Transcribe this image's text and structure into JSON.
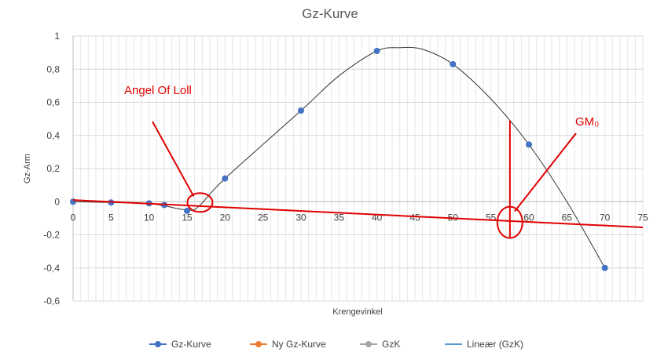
{
  "chart_data": {
    "type": "scatter",
    "title": "Gz-Kurve",
    "xlabel": "Krengevinkel",
    "ylabel": "Gz-Arm",
    "xlim": [
      0,
      75
    ],
    "ylim": [
      -0.6,
      1
    ],
    "x_ticks": [
      "0",
      "5",
      "10",
      "15",
      "20",
      "25",
      "30",
      "35",
      "40",
      "45",
      "50",
      "55",
      "60",
      "65",
      "70",
      "75"
    ],
    "y_ticks": [
      "1",
      "0,8",
      "0,6",
      "0,4",
      "0,2",
      "0",
      "-0,2",
      "-0,4",
      "-0,6"
    ],
    "grid": true,
    "legend_position": "bottom",
    "series": [
      {
        "name": "Gz-Kurve",
        "color": "#4472c4",
        "marker": "circle",
        "points": [
          [
            0,
            0
          ],
          [
            5,
            -0.005
          ],
          [
            10,
            -0.01
          ],
          [
            12,
            -0.02
          ],
          [
            15,
            -0.055
          ],
          [
            20,
            0.14
          ],
          [
            30,
            0.55
          ],
          [
            40,
            0.91
          ],
          [
            50,
            0.83
          ],
          [
            60,
            0.345
          ],
          [
            70,
            -0.4
          ]
        ]
      },
      {
        "name": "Ny Gz-Kurve",
        "color": "#ed7d31",
        "points": []
      },
      {
        "name": "GzK",
        "color": "#a5a5a5",
        "smooth_curve": [
          [
            0,
            0
          ],
          [
            5,
            -0.005
          ],
          [
            10,
            -0.012
          ],
          [
            12,
            -0.025
          ],
          [
            15,
            -0.05
          ],
          [
            16.5,
            -0.03
          ],
          [
            20,
            0.14
          ],
          [
            30,
            0.55
          ],
          [
            35,
            0.76
          ],
          [
            40,
            0.91
          ],
          [
            43,
            0.93
          ],
          [
            46,
            0.92
          ],
          [
            50,
            0.83
          ],
          [
            55,
            0.62
          ],
          [
            60,
            0.345
          ],
          [
            65,
            0.0
          ],
          [
            70,
            -0.4
          ]
        ]
      },
      {
        "name": "Lineær (GzK)",
        "color": "#5b9bd5",
        "points": []
      }
    ],
    "annotation_line": {
      "color": "#e00000",
      "points": [
        [
          0,
          0.01
        ],
        [
          75,
          -0.155
        ]
      ]
    },
    "annotations": [
      {
        "text": "Angel Of Loll",
        "color": "#e00000",
        "target": [
          16.7,
          -0.005
        ]
      },
      {
        "text": "GM₀",
        "color": "#e00000",
        "target": [
          57.5,
          -0.125
        ],
        "vertical_line_x": 57.5,
        "vertical_line_y": [
          -0.22,
          0.49
        ]
      }
    ]
  }
}
